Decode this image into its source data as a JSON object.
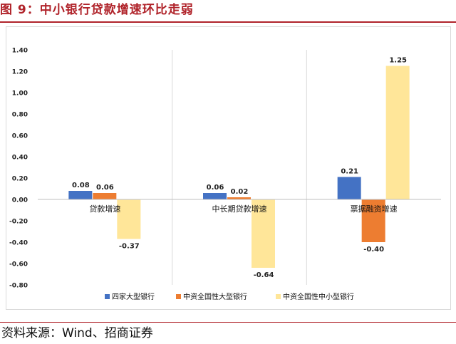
{
  "figure": {
    "title": "图 9：中小银行贷款增速环比走弱",
    "source": "资料来源：Wind、招商证券"
  },
  "chart_data": {
    "type": "bar",
    "title": "",
    "xlabel": "",
    "ylabel": "",
    "categories": [
      "贷款增速",
      "中长期贷款增速",
      "票据融资增速"
    ],
    "series": [
      {
        "name": "四家大型银行",
        "color": "#4472c4",
        "values": [
          0.08,
          0.06,
          0.21
        ]
      },
      {
        "name": "中资全国性大型银行",
        "color": "#ed7d31",
        "values": [
          0.06,
          0.02,
          -0.4
        ]
      },
      {
        "name": "中资全国性中小型银行",
        "color": "#ffe699",
        "values": [
          -0.37,
          -0.64,
          1.25
        ]
      }
    ],
    "data_labels": [
      [
        "0.08",
        "0.06",
        "0.21"
      ],
      [
        "0.06",
        "0.02",
        "-0.40"
      ],
      [
        "-0.37",
        "-0.64",
        "1.25"
      ]
    ],
    "ylim": [
      -0.8,
      1.4
    ],
    "yticks": [
      "1.40",
      "1.20",
      "1.00",
      "0.80",
      "0.60",
      "0.40",
      "0.20",
      "0.00",
      "-0.20",
      "-0.40",
      "-0.60",
      "-0.80"
    ],
    "grid": false,
    "group_separators": true,
    "legend_position": "bottom"
  }
}
